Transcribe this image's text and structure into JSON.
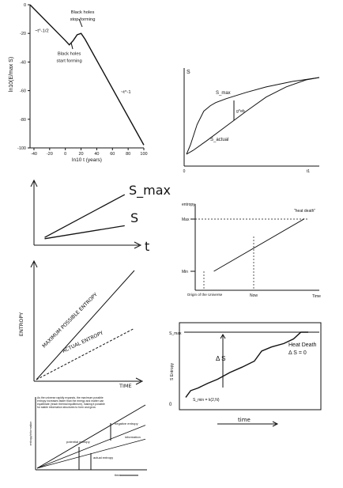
{
  "chart_data": [
    {
      "type": "line",
      "ylabel": "ln10(E/max S)",
      "xlabel": "ln10 t (years)",
      "xlim": [
        -45,
        100
      ],
      "ylim": [
        -100,
        0
      ],
      "xticks": [
        "-40",
        "-20",
        "0",
        "20",
        "40",
        "60",
        "80",
        "100"
      ],
      "yticks": [
        "0",
        "-20",
        "-40",
        "-60",
        "-80",
        "-100"
      ],
      "series": [
        {
          "x": [
            -45,
            0,
            5,
            10,
            15,
            20,
            25,
            100
          ],
          "y": [
            0,
            -25,
            -28,
            -25,
            -21,
            -20,
            -24,
            -98
          ]
        }
      ],
      "annotations": [
        {
          "text": "~t^-1/2",
          "x": -30,
          "y": -19
        },
        {
          "text": "Black holes",
          "x": 22,
          "y": -6
        },
        {
          "text": "stop forming",
          "x": 22,
          "y": -11
        },
        {
          "text": "Black holes",
          "x": 5,
          "y": -35
        },
        {
          "text": "start forming",
          "x": 5,
          "y": -40
        },
        {
          "text": "~t^-1",
          "x": 77,
          "y": -62
        }
      ]
    },
    {
      "type": "line",
      "ylabel": "S",
      "xticks": [
        "0",
        "t1"
      ],
      "series": [
        {
          "name": "S_max",
          "x": [
            0,
            0.03,
            0.08,
            0.13,
            0.18,
            0.22,
            0.3,
            0.45,
            0.6,
            0.8,
            1.0
          ],
          "y": [
            0,
            0.12,
            0.38,
            0.55,
            0.62,
            0.66,
            0.71,
            0.79,
            0.86,
            0.93,
            0.98
          ]
        },
        {
          "name": "S_actual",
          "x": [
            0,
            0.05,
            0.15,
            0.3,
            0.45,
            0.6,
            0.75,
            0.9,
            1.0
          ],
          "y": [
            0,
            0.05,
            0.17,
            0.36,
            0.55,
            0.73,
            0.86,
            0.95,
            0.98
          ]
        }
      ],
      "annotations": [
        "S_max",
        "g^eb",
        "S_actual"
      ]
    },
    {
      "type": "line",
      "ylabel": "",
      "xlabel": "t",
      "series": [
        {
          "name": "S_max",
          "x": [
            0.1,
            0.85
          ],
          "y": [
            0.12,
            0.78
          ]
        },
        {
          "name": "S",
          "x": [
            0.1,
            0.85
          ],
          "y": [
            0.1,
            0.3
          ]
        }
      ]
    },
    {
      "type": "line",
      "ylabel": "entropy",
      "xlabel": "Time",
      "yticks": [
        "Max",
        "Min"
      ],
      "markers": [
        "Origin of the Universe",
        "Now"
      ],
      "series": [
        {
          "x": [
            0.15,
            0.88
          ],
          "y": [
            0.0,
            0.82
          ]
        }
      ],
      "annotations": [
        "\"heat death\""
      ]
    },
    {
      "type": "line",
      "ylabel": "ENTROPY",
      "xlabel": "TIME",
      "series": [
        {
          "name": "MAXIMUM POSSIBLE ENTROPY",
          "x": [
            0,
            1
          ],
          "y": [
            0,
            1
          ]
        },
        {
          "name": "ACTUAL ENTROPY",
          "x": [
            0,
            1
          ],
          "y": [
            0,
            0.47
          ]
        }
      ]
    },
    {
      "type": "line",
      "ylabel": "S Entropy",
      "xlabel": "time",
      "yticks": [
        "S_max",
        "0"
      ],
      "series": [
        {
          "x": [
            0,
            0.04,
            0.1,
            0.18,
            0.26,
            0.36,
            0.46,
            0.56,
            0.62,
            0.7,
            0.8,
            0.88,
            0.94,
            1.0
          ],
          "y": [
            0.03,
            0.13,
            0.17,
            0.24,
            0.3,
            0.4,
            0.48,
            0.57,
            0.72,
            0.78,
            0.83,
            0.9,
            1.0,
            1.0
          ]
        }
      ],
      "annotations": [
        "Δ S",
        "Heat Death",
        "Δ S  = 0",
        "S_min = k(2,N)"
      ]
    },
    {
      "type": "line",
      "ylabel": "entropy/information",
      "xlabel": "time",
      "series": [
        {
          "name": "upper",
          "x": [
            0,
            1
          ],
          "y": [
            0,
            1
          ]
        },
        {
          "name": "middle",
          "x": [
            0,
            1
          ],
          "y": [
            0,
            0.68
          ]
        },
        {
          "name": "lower",
          "x": [
            0,
            1
          ],
          "y": [
            0,
            0.46
          ]
        }
      ],
      "annotations": [
        "negative entropy",
        "information",
        "potential entropy",
        "actual entropy"
      ],
      "caption": "As the universe rapidly expands, the maximum possible entropy increases faster than the energy and matter can equilibrate (reach thermal equilibrium), making it possible for stable information structures to form and grow."
    }
  ]
}
